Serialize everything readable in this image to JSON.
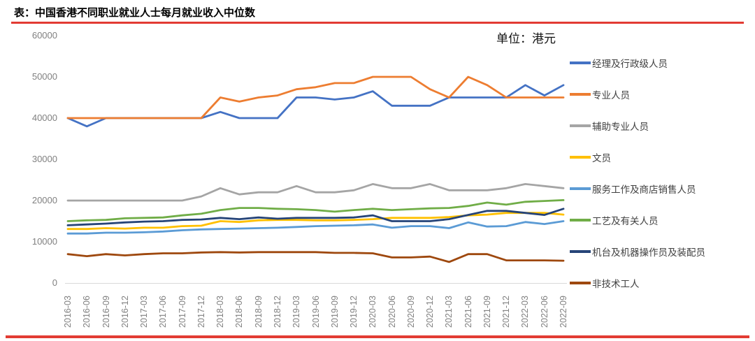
{
  "header": {
    "title": "表：中国香港不同职业就业人士每月就业收入中位数"
  },
  "chart_data": {
    "type": "line",
    "title": "表：中国香港不同职业就业人士每月就业收入中位数",
    "unit_label": "单位：港元",
    "ylabel": "",
    "xlabel": "",
    "ylim": [
      0,
      60000
    ],
    "y_tick_step": 10000,
    "y_ticks": [
      "60000",
      "50000",
      "40000",
      "30000",
      "20000",
      "10000",
      "0"
    ],
    "grid": false,
    "legend_position": "right",
    "categories": [
      "2016-03",
      "2016-06",
      "2016-09",
      "2016-12",
      "2017-03",
      "2017-06",
      "2017-09",
      "2017-12",
      "2018-03",
      "2018-06",
      "2018-09",
      "2018-12",
      "2019-03",
      "2019-06",
      "2019-09",
      "2019-12",
      "2020-03",
      "2020-06",
      "2020-09",
      "2020-12",
      "2021-03",
      "2021-06",
      "2021-09",
      "2021-12",
      "2022-03",
      "2022-06",
      "2022-09"
    ],
    "series": [
      {
        "name": "经理及行政级人员",
        "color": "#4472C4",
        "values": [
          40000,
          38000,
          40000,
          40000,
          40000,
          40000,
          40000,
          40000,
          41500,
          40000,
          40000,
          40000,
          45000,
          45000,
          44500,
          45000,
          46500,
          43000,
          43000,
          43000,
          45000,
          45000,
          45000,
          45000,
          48000,
          45500,
          48000
        ]
      },
      {
        "name": "专业人员",
        "color": "#ED7D31",
        "values": [
          40000,
          40000,
          40000,
          40000,
          40000,
          40000,
          40000,
          40000,
          45000,
          44000,
          45000,
          45500,
          47000,
          47500,
          48500,
          48500,
          50000,
          50000,
          50000,
          47000,
          45000,
          50000,
          48000,
          45000,
          45000,
          45000,
          45000
        ]
      },
      {
        "name": "辅助专业人员",
        "color": "#A5A5A5",
        "values": [
          20000,
          20000,
          20000,
          20000,
          20000,
          20000,
          20000,
          21000,
          23000,
          21500,
          22000,
          22000,
          23500,
          22000,
          22000,
          22500,
          24000,
          23000,
          23000,
          24000,
          22500,
          22500,
          22500,
          23000,
          24000,
          23500,
          23000
        ]
      },
      {
        "name": "文员",
        "color": "#FFC000",
        "values": [
          13100,
          13100,
          13300,
          13200,
          13400,
          13400,
          13800,
          13900,
          15000,
          14800,
          15200,
          15300,
          15300,
          15200,
          15200,
          15300,
          15500,
          15800,
          15800,
          15800,
          16000,
          16400,
          16600,
          17000,
          17000,
          17000,
          16600
        ]
      },
      {
        "name": "服务工作及商店销售人员",
        "color": "#5B9BD5",
        "values": [
          12000,
          12000,
          12200,
          12200,
          12300,
          12500,
          12800,
          13000,
          13100,
          13200,
          13300,
          13400,
          13600,
          13800,
          13900,
          14000,
          14200,
          13400,
          13800,
          13800,
          13300,
          14700,
          13700,
          13800,
          14800,
          14300,
          15000
        ]
      },
      {
        "name": "工艺及有关人员",
        "color": "#70AD47",
        "values": [
          15000,
          15200,
          15300,
          15700,
          15800,
          15900,
          16400,
          16800,
          17700,
          18200,
          18200,
          18000,
          17900,
          17700,
          17300,
          17700,
          18000,
          17700,
          17900,
          18100,
          18200,
          18700,
          19500,
          19000,
          19700,
          19900,
          20100
        ]
      },
      {
        "name": "机台及机器操作员及装配员",
        "color": "#264478",
        "values": [
          14000,
          14200,
          14400,
          14700,
          14900,
          15000,
          15300,
          15400,
          15800,
          15500,
          15900,
          15600,
          15800,
          15800,
          15800,
          15900,
          16400,
          15000,
          15000,
          15000,
          15500,
          16500,
          17500,
          17500,
          17000,
          16500,
          18000
        ]
      },
      {
        "name": "非技术工人",
        "color": "#9E480E",
        "values": [
          7000,
          6500,
          7000,
          6700,
          7000,
          7200,
          7200,
          7400,
          7500,
          7400,
          7500,
          7500,
          7500,
          7500,
          7300,
          7300,
          7200,
          6200,
          6200,
          6400,
          5100,
          7000,
          7000,
          5500,
          5500,
          5500,
          5400
        ]
      }
    ]
  },
  "colors": {
    "rule_red": "#e23b33",
    "axis_text": "#808080",
    "legend_text": "#404040",
    "axis_line": "#d9d9d9"
  }
}
